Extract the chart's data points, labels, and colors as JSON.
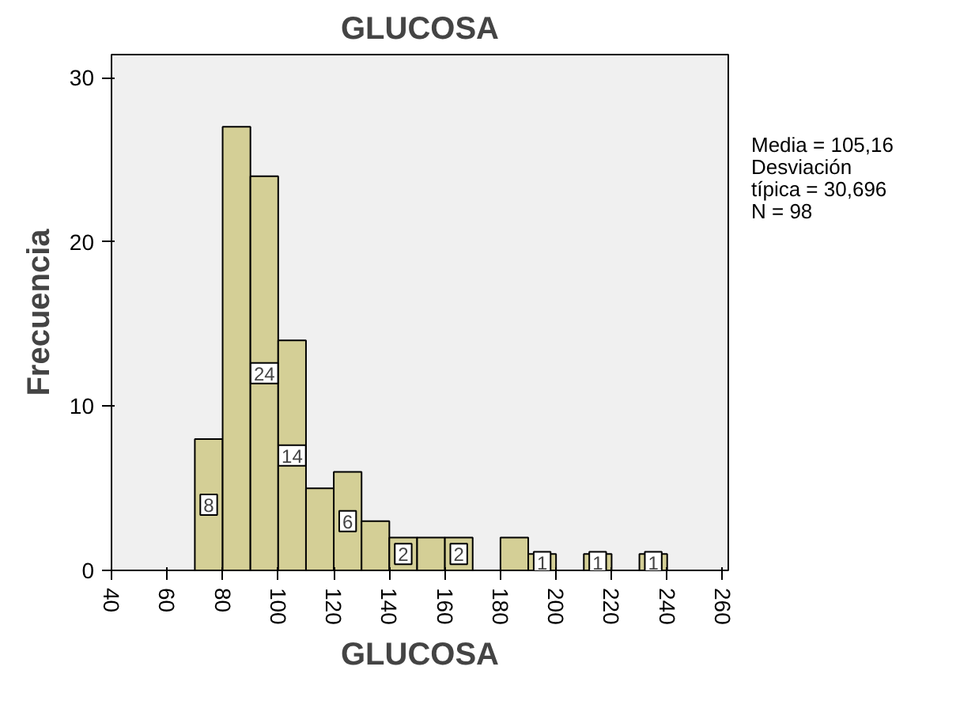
{
  "chart_data": {
    "type": "histogram",
    "title": "GLUCOSA",
    "xlabel": "GLUCOSA",
    "ylabel": "Frecuencia",
    "bins": [
      70,
      80,
      90,
      100,
      110,
      120,
      130,
      140,
      150,
      160,
      170,
      180,
      190,
      200,
      210,
      220,
      230,
      240
    ],
    "values": [
      8,
      27,
      24,
      14,
      5,
      6,
      3,
      2,
      2,
      2,
      0,
      2,
      1,
      0,
      1,
      0,
      1
    ],
    "value_labels": [
      "8",
      null,
      "24",
      "14",
      null,
      "6",
      null,
      "2",
      null,
      "2",
      null,
      null,
      "1",
      null,
      "1",
      null,
      "1"
    ],
    "color": "#d4cf96",
    "xlim": [
      40,
      262
    ],
    "xticks": [
      40,
      60,
      80,
      100,
      120,
      140,
      160,
      180,
      200,
      220,
      240,
      260
    ],
    "ylim": [
      0,
      31.4
    ],
    "yticks": [
      0,
      10,
      20,
      30
    ],
    "grid": false,
    "annotations": [
      "Media = 105,16\nDesviación\ntípica = 30,696\nN = 98"
    ]
  }
}
